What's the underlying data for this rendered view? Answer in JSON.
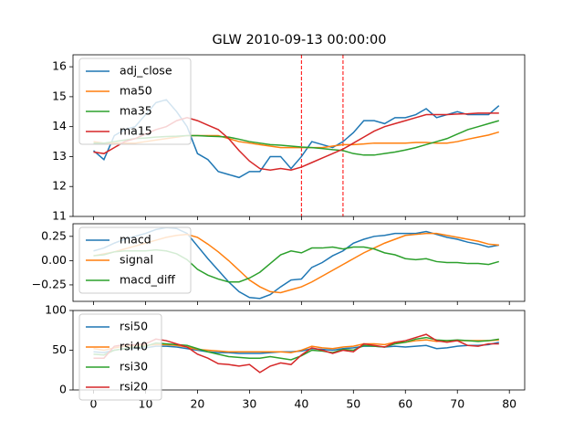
{
  "chart_data": [
    {
      "type": "line",
      "title": "GLW 2010-09-13 00:00:00",
      "x": [
        0,
        2,
        4,
        6,
        8,
        10,
        12,
        14,
        16,
        18,
        20,
        22,
        24,
        26,
        28,
        30,
        32,
        34,
        36,
        38,
        40,
        42,
        44,
        46,
        48,
        50,
        52,
        54,
        56,
        58,
        60,
        62,
        64,
        66,
        68,
        70,
        72,
        74,
        76,
        78
      ],
      "series": [
        {
          "name": "adj_close",
          "color": "#1f77b4",
          "values": [
            13.2,
            12.9,
            13.7,
            13.9,
            14.0,
            14.4,
            14.8,
            14.9,
            14.5,
            14.0,
            13.1,
            12.9,
            12.5,
            12.4,
            12.3,
            12.5,
            12.5,
            13.0,
            13.0,
            12.6,
            13.0,
            13.5,
            13.4,
            13.3,
            13.5,
            13.8,
            14.2,
            14.2,
            14.1,
            14.3,
            14.3,
            14.4,
            14.6,
            14.3,
            14.4,
            14.5,
            14.4,
            14.4,
            14.4,
            14.7
          ]
        },
        {
          "name": "ma50",
          "color": "#ff7f0e",
          "values": [
            13.5,
            13.45,
            13.45,
            13.45,
            13.45,
            13.5,
            13.55,
            13.6,
            13.65,
            13.7,
            13.7,
            13.7,
            13.7,
            13.6,
            13.5,
            13.45,
            13.4,
            13.35,
            13.3,
            13.3,
            13.3,
            13.3,
            13.3,
            13.35,
            13.4,
            13.4,
            13.42,
            13.45,
            13.45,
            13.45,
            13.45,
            13.47,
            13.47,
            13.45,
            13.45,
            13.5,
            13.58,
            13.65,
            13.72,
            13.82
          ]
        },
        {
          "name": "ma35",
          "color": "#2ca02c",
          "values": [
            13.45,
            13.45,
            13.5,
            13.55,
            13.6,
            13.62,
            13.65,
            13.67,
            13.68,
            13.7,
            13.7,
            13.68,
            13.67,
            13.65,
            13.58,
            13.5,
            13.45,
            13.4,
            13.38,
            13.35,
            13.32,
            13.3,
            13.27,
            13.23,
            13.2,
            13.1,
            13.05,
            13.05,
            13.1,
            13.15,
            13.22,
            13.3,
            13.4,
            13.5,
            13.6,
            13.75,
            13.9,
            14.0,
            14.1,
            14.2
          ]
        },
        {
          "name": "ma15",
          "color": "#d62728",
          "values": [
            13.15,
            13.1,
            13.3,
            13.5,
            13.6,
            13.75,
            13.9,
            14.0,
            14.2,
            14.3,
            14.2,
            14.05,
            13.9,
            13.6,
            13.2,
            12.85,
            12.6,
            12.55,
            12.6,
            12.55,
            12.65,
            12.8,
            12.95,
            13.1,
            13.25,
            13.45,
            13.65,
            13.85,
            14.0,
            14.1,
            14.2,
            14.3,
            14.4,
            14.4,
            14.4,
            14.42,
            14.43,
            14.45,
            14.45,
            14.45
          ]
        }
      ],
      "vlines": [
        40,
        48
      ],
      "vline_color": "#ff0000",
      "xlim": [
        -3.95,
        82.95
      ],
      "ylim": [
        11,
        16.4
      ],
      "yticks": [
        11,
        12,
        13,
        14,
        15,
        16
      ],
      "legend": "upper left"
    },
    {
      "type": "line",
      "x": [
        0,
        2,
        4,
        6,
        8,
        10,
        12,
        14,
        16,
        18,
        20,
        22,
        24,
        26,
        28,
        30,
        32,
        34,
        36,
        38,
        40,
        42,
        44,
        46,
        48,
        50,
        52,
        54,
        56,
        58,
        60,
        62,
        64,
        66,
        68,
        70,
        72,
        74,
        76,
        78
      ],
      "series": [
        {
          "name": "macd",
          "color": "#1f77b4",
          "values": [
            0.1,
            0.13,
            0.18,
            0.22,
            0.25,
            0.28,
            0.32,
            0.34,
            0.33,
            0.28,
            0.15,
            0.02,
            -0.1,
            -0.22,
            -0.32,
            -0.38,
            -0.39,
            -0.35,
            -0.27,
            -0.2,
            -0.19,
            -0.07,
            -0.02,
            0.05,
            0.1,
            0.18,
            0.22,
            0.25,
            0.26,
            0.28,
            0.28,
            0.28,
            0.3,
            0.27,
            0.24,
            0.22,
            0.19,
            0.17,
            0.14,
            0.16
          ]
        },
        {
          "name": "signal",
          "color": "#ff7f0e",
          "values": [
            0.05,
            0.07,
            0.09,
            0.12,
            0.15,
            0.18,
            0.21,
            0.24,
            0.26,
            0.27,
            0.24,
            0.17,
            0.09,
            0.0,
            -0.1,
            -0.2,
            -0.27,
            -0.32,
            -0.33,
            -0.3,
            -0.27,
            -0.22,
            -0.16,
            -0.1,
            -0.04,
            0.02,
            0.08,
            0.13,
            0.18,
            0.22,
            0.26,
            0.27,
            0.28,
            0.28,
            0.26,
            0.24,
            0.22,
            0.2,
            0.17,
            0.16
          ]
        },
        {
          "name": "macd_diff",
          "color": "#2ca02c",
          "values": [
            0.05,
            0.06,
            0.09,
            0.1,
            0.1,
            0.1,
            0.11,
            0.1,
            0.07,
            0.01,
            -0.09,
            -0.15,
            -0.19,
            -0.22,
            -0.22,
            -0.18,
            -0.12,
            -0.03,
            0.06,
            0.1,
            0.08,
            0.13,
            0.13,
            0.14,
            0.12,
            0.14,
            0.14,
            0.12,
            0.08,
            0.06,
            0.02,
            0.01,
            0.02,
            -0.01,
            -0.02,
            -0.02,
            -0.03,
            -0.03,
            -0.04,
            -0.01
          ]
        }
      ],
      "xlim": [
        -3.95,
        82.95
      ],
      "ylim": [
        -0.42,
        0.38
      ],
      "yticks": [
        {
          "value": -0.25,
          "label": "−0.25"
        },
        {
          "value": 0,
          "label": "0.00"
        },
        0.25
      ],
      "legend": "upper left"
    },
    {
      "type": "line",
      "x": [
        0,
        2,
        4,
        6,
        8,
        10,
        12,
        14,
        16,
        18,
        20,
        22,
        24,
        26,
        28,
        30,
        32,
        34,
        36,
        38,
        40,
        42,
        44,
        46,
        48,
        50,
        52,
        54,
        56,
        58,
        60,
        62,
        64,
        66,
        68,
        70,
        72,
        74,
        76,
        78
      ],
      "series": [
        {
          "name": "rsi50",
          "color": "#1f77b4",
          "values": [
            48,
            47,
            50,
            52,
            52,
            53,
            55,
            55,
            54,
            52,
            50,
            48,
            47,
            47,
            46,
            46,
            46,
            47,
            48,
            48,
            49,
            52,
            51,
            50,
            52,
            53,
            55,
            55,
            54,
            55,
            54,
            55,
            56,
            52,
            53,
            55,
            56,
            56,
            57,
            60
          ]
        },
        {
          "name": "rsi40",
          "color": "#ff7f0e",
          "values": [
            52,
            50,
            53,
            55,
            56,
            56,
            57,
            57,
            56,
            54,
            51,
            50,
            49,
            48,
            48,
            48,
            48,
            48,
            48,
            47,
            50,
            55,
            53,
            52,
            54,
            55,
            58,
            58,
            57,
            60,
            60,
            62,
            63,
            61,
            62,
            62,
            62,
            62,
            62,
            63
          ]
        },
        {
          "name": "rsi30",
          "color": "#2ca02c",
          "values": [
            45,
            44,
            50,
            52,
            54,
            55,
            59,
            58,
            57,
            56,
            52,
            48,
            45,
            42,
            41,
            40,
            40,
            42,
            40,
            38,
            43,
            50,
            49,
            47,
            51,
            50,
            56,
            55,
            54,
            58,
            60,
            64,
            66,
            63,
            62,
            63,
            62,
            61,
            62,
            64
          ]
        },
        {
          "name": "rsi20",
          "color": "#d62728",
          "values": [
            40,
            40,
            55,
            57,
            57,
            58,
            64,
            62,
            58,
            54,
            45,
            40,
            33,
            32,
            30,
            32,
            22,
            30,
            34,
            32,
            44,
            53,
            50,
            46,
            50,
            48,
            58,
            56,
            54,
            60,
            62,
            66,
            70,
            62,
            60,
            62,
            56,
            55,
            58,
            58
          ]
        }
      ],
      "xlim": [
        -3.95,
        82.95
      ],
      "ylim": [
        0,
        100
      ],
      "yticks": [
        0,
        50,
        100
      ],
      "xticks": [
        0,
        10,
        20,
        30,
        40,
        50,
        60,
        70,
        80
      ],
      "legend": "upper left"
    }
  ]
}
